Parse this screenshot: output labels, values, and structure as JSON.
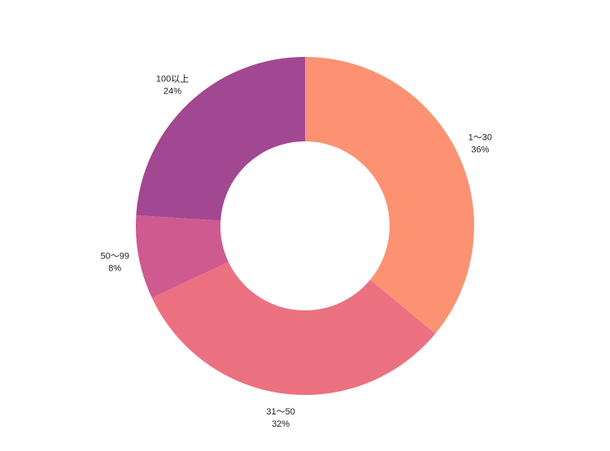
{
  "chart_data": {
    "type": "pie",
    "donut": true,
    "title": "",
    "legend": "none",
    "slices": [
      {
        "label": "1〜30",
        "value": 36,
        "value_label": "36%",
        "color": "#fc9272"
      },
      {
        "label": "31〜50",
        "value": 32,
        "value_label": "32%",
        "color": "#eb7181"
      },
      {
        "label": "50〜99",
        "value": 8,
        "value_label": "8%",
        "color": "#ce5a8f"
      },
      {
        "label": "100以上",
        "value": 24,
        "value_label": "24%",
        "color": "#a24792"
      }
    ]
  }
}
